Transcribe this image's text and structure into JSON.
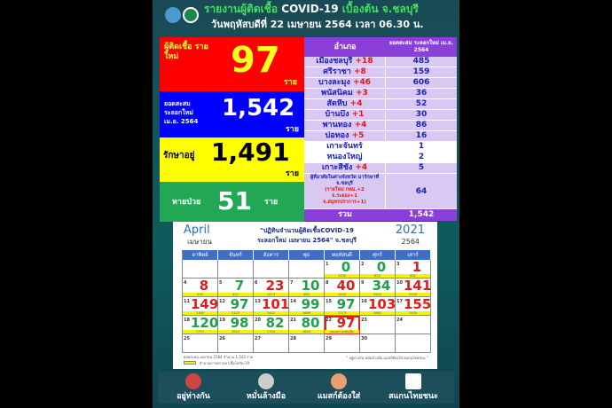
{
  "header": {
    "title_prefix": "รายงานผู้ติดเชื้อ",
    "title_main": "COVID-19",
    "title_suffix": "เบื้องต้น จ.ชลบุรี",
    "date_line": "วันพฤหัสบดีที่ 22 เมษายน 2564 เวลา 06.30 น."
  },
  "summary": {
    "new_label": "ผู้ติดเชื้อ รายใหม่",
    "new_value": "97",
    "unit": "ราย",
    "cum_label_1": "ยอดสะสม",
    "cum_label_2": "ระลอกใหม่",
    "cum_label_3": "เม.ย. 2564",
    "cum_value": "1,542",
    "treat_label": "รักษาอยู่",
    "treat_value": "1,491",
    "recovered_label": "หายป่วย",
    "recovered_value": "51"
  },
  "district_table": {
    "col1": "อำเภอ",
    "col2": "ยอดสะสม ระลอกใหม่ เม.ย. 2564",
    "rows": [
      {
        "name": "เมืองชลบุรี",
        "delta": "+18",
        "total": "485"
      },
      {
        "name": "ศรีราชา",
        "delta": "+8",
        "total": "159"
      },
      {
        "name": "บางละมุง",
        "delta": "+46",
        "total": "606"
      },
      {
        "name": "พนัสนิคม",
        "delta": "+3",
        "total": "36"
      },
      {
        "name": "สัตหีบ",
        "delta": "+4",
        "total": "52"
      },
      {
        "name": "บ้านบึง",
        "delta": "+1",
        "total": "30"
      },
      {
        "name": "พานทอง",
        "delta": "+4",
        "total": "86"
      },
      {
        "name": "บ่อทอง",
        "delta": "+5",
        "total": "16"
      },
      {
        "name": "เกาะจันทร์",
        "delta": "",
        "total": "1"
      },
      {
        "name": "หนองใหญ่",
        "delta": "",
        "total": "2"
      },
      {
        "name": "เกาะสีชัง",
        "delta": "+4",
        "total": "5"
      }
    ],
    "other_name": "ผู้ที่อาศัยในต่างจังหวัด มารักษาที่ จ.ชลบุรี",
    "other_note_1": "(รายใหม่ กทม.+2",
    "other_note_2": "จ.ระยอง+1",
    "other_note_3": "จ.สมุทรปราการ+1)",
    "other_total": "64",
    "total_label": "รวม",
    "total_value": "1,542"
  },
  "calendar": {
    "month_en": "April",
    "month_th": "เมษายน",
    "year_en": "2021",
    "year_th": "2564",
    "title_1": "\"ปฏิทินจำนวนผู้ติดเชื้อCOVID-19",
    "title_2": "ระลอกใหม่ เมษายน 2564\" จ.ชลบุรี",
    "weekdays": [
      "อาทิตย์",
      "จันทร์",
      "อังคาร",
      "พุธ",
      "พฤหัสบดี",
      "ศุกร์",
      "เสาร์"
    ],
    "cells": [
      {
        "d": "",
        "v": "",
        "u": "",
        "c": ""
      },
      {
        "d": "",
        "v": "",
        "u": "",
        "c": ""
      },
      {
        "d": "",
        "v": "",
        "u": "",
        "c": ""
      },
      {
        "d": "",
        "v": "",
        "u": "",
        "c": ""
      },
      {
        "d": "1",
        "v": "0",
        "u": "1530",
        "c": "green"
      },
      {
        "d": "2",
        "v": "0",
        "u": "825",
        "c": "green"
      },
      {
        "d": "3",
        "v": "1",
        "u": "961",
        "c": "red"
      },
      {
        "d": "4",
        "v": "8",
        "u": "430",
        "c": "red"
      },
      {
        "d": "5",
        "v": "7",
        "u": "422",
        "c": "green"
      },
      {
        "d": "6",
        "v": "23",
        "u": "1473",
        "c": "red"
      },
      {
        "d": "7",
        "v": "10",
        "u": "489",
        "c": "green"
      },
      {
        "d": "8",
        "v": "40",
        "u": "1005",
        "c": "red"
      },
      {
        "d": "9",
        "v": "34",
        "u": "2505",
        "c": "green"
      },
      {
        "d": "10",
        "v": "141",
        "u": "2539",
        "c": "red"
      },
      {
        "d": "11",
        "v": "149",
        "u": "2395",
        "c": "red"
      },
      {
        "d": "12",
        "v": "97",
        "u": "2123",
        "c": "green"
      },
      {
        "d": "13",
        "v": "101",
        "u": "2602",
        "c": "red"
      },
      {
        "d": "14",
        "v": "99",
        "u": "1666",
        "c": "green"
      },
      {
        "d": "15",
        "v": "97",
        "u": "1713",
        "c": "green"
      },
      {
        "d": "16",
        "v": "103",
        "u": "1862",
        "c": "red"
      },
      {
        "d": "17",
        "v": "155",
        "u": "1939",
        "c": "red"
      },
      {
        "d": "18",
        "v": "120",
        "u": "1757",
        "c": "green"
      },
      {
        "d": "19",
        "v": "98",
        "u": "1914",
        "c": "green"
      },
      {
        "d": "20",
        "v": "82",
        "u": "1704",
        "c": "green"
      },
      {
        "d": "21",
        "v": "80",
        "u": "1616",
        "c": "green"
      },
      {
        "d": "22",
        "v": "97",
        "u": "รอผลตรวจเพิ่มเติม",
        "c": "red"
      },
      {
        "d": "23",
        "v": "",
        "u": "",
        "c": ""
      },
      {
        "d": "24",
        "v": "",
        "u": "",
        "c": ""
      },
      {
        "d": "25",
        "v": "",
        "u": "",
        "c": ""
      },
      {
        "d": "26",
        "v": "",
        "u": "",
        "c": ""
      },
      {
        "d": "27",
        "v": "",
        "u": "",
        "c": ""
      },
      {
        "d": "28",
        "v": "",
        "u": "",
        "c": ""
      },
      {
        "d": "29",
        "v": "",
        "u": "",
        "c": ""
      },
      {
        "d": "30",
        "v": "",
        "u": "",
        "c": ""
      },
      {
        "d": "",
        "v": "",
        "u": "",
        "c": ""
      }
    ],
    "note": "ยอดสะสม เมษายน 2564 จำนวน 1,542 ราย",
    "legend": "จำนวนการตรวจหาเชื้อโควิด-19",
    "slogan": "\" อยู่ห่างกัน หมั่นล้างมือ แมสก์ต้องใส่ สแกนไทยชนะ \""
  },
  "footer": {
    "items": [
      "อยู่ห่างกัน",
      "หมั่นล้างมือ",
      "แมสก์ต้องใส่",
      "สแกนไทยชนะ"
    ]
  },
  "colors": {
    "red": "#ff0000",
    "blue": "#0000ff",
    "yellow": "#ffff00",
    "green": "#22a855",
    "purple": "#8a3fd9",
    "lavender": "#d8c8f2"
  }
}
